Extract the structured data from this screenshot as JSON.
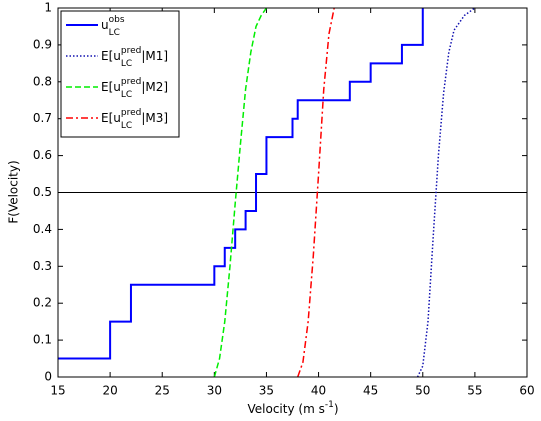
{
  "chart_data": {
    "type": "line",
    "xlabel": [
      "Velocity (m s",
      "-1",
      ")"
    ],
    "ylabel": "F(Velocity)",
    "xlim": [
      15,
      60
    ],
    "xticks": [
      15,
      20,
      25,
      30,
      35,
      40,
      45,
      50,
      55,
      60
    ],
    "ylim": [
      0,
      1
    ],
    "yticks": [
      0,
      0.1,
      0.2,
      0.3,
      0.4,
      0.5,
      0.6,
      0.7,
      0.8,
      0.9,
      1
    ],
    "hline": 0.5,
    "legend": "upper left",
    "series": [
      {
        "name": [
          "u",
          "LC",
          "obs"
        ],
        "color": "#0000ff",
        "linestyle": "-",
        "drawstyle": "steps-post",
        "x": [
          15,
          20,
          22,
          30,
          31,
          32,
          33,
          34,
          35,
          37.5,
          38,
          43,
          45,
          48,
          50
        ],
        "values": [
          0.05,
          0.15,
          0.25,
          0.3,
          0.35,
          0.4,
          0.45,
          0.55,
          0.65,
          0.7,
          0.75,
          0.8,
          0.85,
          0.9,
          1
        ]
      },
      {
        "name": [
          "E[u",
          "LC",
          "pred",
          "|M1]"
        ],
        "color": "#1010b0",
        "linestyle": ":",
        "x": [
          49.5,
          50,
          50.5,
          51,
          51.5,
          52,
          52.5,
          53,
          54,
          55
        ],
        "values": [
          0,
          0.03,
          0.15,
          0.38,
          0.6,
          0.77,
          0.88,
          0.94,
          0.98,
          1
        ]
      },
      {
        "name": [
          "E[u",
          "LC",
          "pred",
          "|M2]"
        ],
        "color": "#00ee00",
        "linestyle": "--",
        "x": [
          30,
          30.5,
          31,
          31.5,
          32,
          32.5,
          33,
          33.5,
          34,
          34.5,
          35
        ],
        "values": [
          0,
          0.05,
          0.15,
          0.3,
          0.47,
          0.63,
          0.78,
          0.88,
          0.95,
          0.98,
          1
        ]
      },
      {
        "name": [
          "E[u",
          "LC",
          "pred",
          "|M3]"
        ],
        "color": "#ff0000",
        "linestyle": "-.",
        "x": [
          38,
          38.5,
          39,
          39.5,
          40,
          40.5,
          41,
          41.5
        ],
        "values": [
          0,
          0.04,
          0.15,
          0.33,
          0.55,
          0.78,
          0.93,
          1
        ]
      }
    ]
  }
}
